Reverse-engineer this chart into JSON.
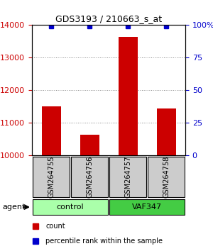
{
  "title": "GDS3193 / 210663_s_at",
  "samples": [
    "GSM264755",
    "GSM264756",
    "GSM264757",
    "GSM264758"
  ],
  "counts": [
    11500,
    10650,
    13650,
    11450
  ],
  "percentile_ranks": [
    99,
    99,
    99,
    99
  ],
  "ylim_left": [
    10000,
    14000
  ],
  "ylim_right": [
    0,
    100
  ],
  "yticks_left": [
    10000,
    11000,
    12000,
    13000,
    14000
  ],
  "yticks_right": [
    0,
    25,
    50,
    75,
    100
  ],
  "bar_color": "#cc0000",
  "percentile_color": "#0000cc",
  "groups": [
    {
      "label": "control",
      "samples": [
        "GSM264755",
        "GSM264756"
      ],
      "color": "#aaffaa"
    },
    {
      "label": "VAF347",
      "samples": [
        "GSM264757",
        "GSM264758"
      ],
      "color": "#44cc44"
    }
  ],
  "agent_label": "agent",
  "legend_count_label": "count",
  "legend_percentile_label": "percentile rank within the sample",
  "grid_color": "#888888",
  "sample_box_color": "#cccccc",
  "bar_width": 0.5
}
